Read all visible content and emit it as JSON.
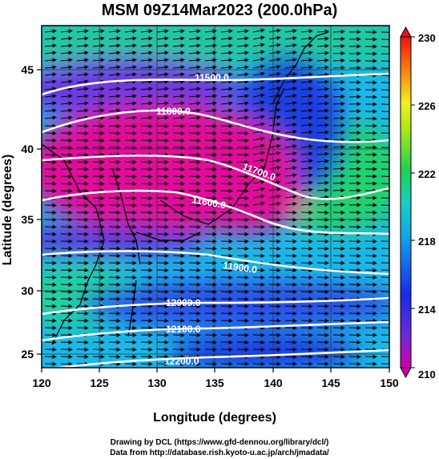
{
  "title": "MSM 09Z14Mar2023 (200.0hPa)",
  "x_axis": {
    "label": "Longitude (degrees)",
    "ticks": [
      "120",
      "125",
      "130",
      "135",
      "140",
      "145",
      "150"
    ]
  },
  "y_axis": {
    "label": "Latitude  (degrees)",
    "ticks": [
      "25",
      "30",
      "35",
      "40",
      "45"
    ]
  },
  "colorbar": {
    "ticks": [
      "210",
      "214",
      "218",
      "222",
      "226",
      "230"
    ]
  },
  "contours": [
    {
      "label": "11500.0"
    },
    {
      "label": "11600.0"
    },
    {
      "label": "11700.0"
    },
    {
      "label": "11800.0"
    },
    {
      "label": "11900.0"
    },
    {
      "label": "12000.0"
    },
    {
      "label": "12100.0"
    },
    {
      "label": "12200.0"
    }
  ],
  "credits": {
    "line1": "Drawing by DCL (https://www.gfd-dennou.org/library/dcl/)",
    "line2": "Data from http://database.rish.kyoto-u.ac.jp/arch/jmadata/"
  },
  "colors": {
    "magenta": "#e0109a",
    "purple": "#7a3ad8",
    "blue": "#2a3fe0",
    "cyan": "#1bbfe6",
    "green": "#22d070",
    "contour": "#ffffff"
  }
}
